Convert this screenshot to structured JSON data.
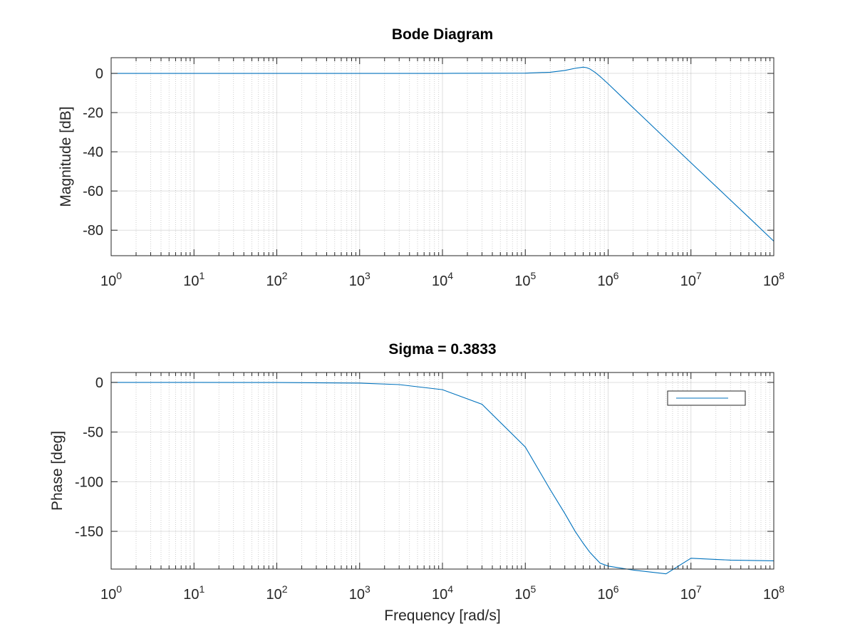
{
  "chart_data": [
    {
      "type": "line",
      "title": "Bode Diagram",
      "xlabel": "",
      "ylabel": "Magnitude [dB]",
      "xscale": "log",
      "xlim": [
        1,
        100000000
      ],
      "ylim": [
        -93,
        8
      ],
      "xticks": [
        1,
        10,
        100,
        1000,
        10000,
        100000,
        1000000,
        10000000,
        100000000
      ],
      "xtick_bases": [
        "10",
        "10",
        "10",
        "10",
        "10",
        "10",
        "10",
        "10",
        "10"
      ],
      "xtick_exps": [
        "0",
        "1",
        "2",
        "3",
        "4",
        "5",
        "6",
        "7",
        "8"
      ],
      "yticks": [
        0,
        -20,
        -40,
        -60,
        -80
      ],
      "ytick_labels": [
        "0",
        "-20",
        "-40",
        "-60",
        "-80"
      ],
      "grid": true,
      "color": "#0072BD",
      "series": [
        {
          "x": [
            1,
            10,
            100,
            1000,
            10000,
            100000,
            200000,
            300000,
            400000,
            500000,
            550000,
            600000,
            700000,
            800000,
            1000000,
            2000000,
            5000000,
            10000000,
            20000000,
            50000000,
            100000000
          ],
          "values": [
            0,
            0,
            0,
            0,
            0,
            0.13,
            0.59,
            1.48,
            2.59,
            3.15,
            2.91,
            2.29,
            0.45,
            -1.58,
            -5.3,
            -17.5,
            -33.5,
            -45.6,
            -57.6,
            -73.5,
            -85.6
          ]
        }
      ]
    },
    {
      "type": "line",
      "title": "Sigma = 0.3833",
      "xlabel": "Frequency [rad/s]",
      "ylabel": "Phase [deg]",
      "xscale": "log",
      "xlim": [
        1,
        100000000
      ],
      "ylim": [
        -188,
        10
      ],
      "xticks": [
        1,
        10,
        100,
        1000,
        10000,
        100000,
        1000000,
        10000000,
        100000000
      ],
      "xtick_bases": [
        "10",
        "10",
        "10",
        "10",
        "10",
        "10",
        "10",
        "10",
        "10"
      ],
      "xtick_exps": [
        "0",
        "1",
        "2",
        "3",
        "4",
        "5",
        "6",
        "7",
        "8"
      ],
      "yticks": [
        0,
        -50,
        -100,
        -150
      ],
      "ytick_labels": [
        "0",
        "-50",
        "-100",
        "-150"
      ],
      "grid": true,
      "legend": "top-right",
      "color": "#0072BD",
      "series": [
        {
          "x": [
            1,
            10,
            100,
            1000,
            3000,
            10000,
            30000,
            100000,
            200000,
            300000,
            400000,
            500000,
            600000,
            700000,
            800000,
            1000000,
            2000000,
            5000000,
            10000000,
            30000000,
            100000000
          ],
          "values": [
            0,
            -0.01,
            -0.07,
            -0.72,
            -2.2,
            -7.3,
            -22,
            -65,
            -108,
            -132,
            -150,
            -162,
            -171,
            -177,
            -182,
            -185,
            -189,
            -192.8,
            -177.1,
            -179.0,
            -179.7
          ]
        }
      ]
    }
  ]
}
